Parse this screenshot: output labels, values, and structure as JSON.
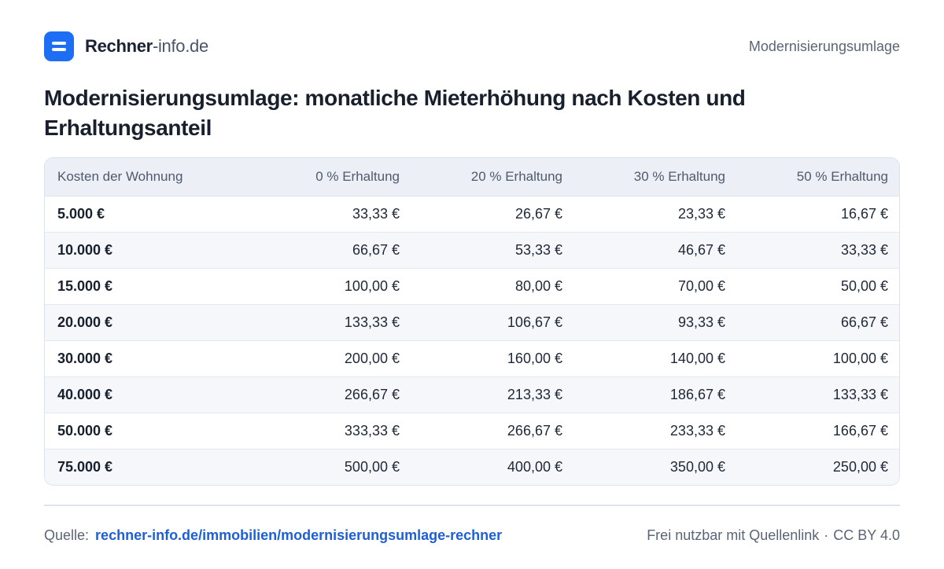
{
  "header": {
    "brand_strong": "Rechner",
    "brand_light": "-info.de",
    "page_tag": "Modernisierungsumlage"
  },
  "title": "Modernisierungsumlage: monatliche Mieterhöhung nach Kosten und Erhaltungsanteil",
  "table": {
    "columns": [
      "Kosten der Wohnung",
      "0 % Erhaltung",
      "20 % Erhaltung",
      "30 % Erhaltung",
      "50 % Erhaltung"
    ],
    "rows": [
      [
        "5.000 €",
        "33,33 €",
        "26,67 €",
        "23,33 €",
        "16,67 €"
      ],
      [
        "10.000 €",
        "66,67 €",
        "53,33 €",
        "46,67 €",
        "33,33 €"
      ],
      [
        "15.000 €",
        "100,00 €",
        "80,00 €",
        "70,00 €",
        "50,00 €"
      ],
      [
        "20.000 €",
        "133,33 €",
        "106,67 €",
        "93,33 €",
        "66,67 €"
      ],
      [
        "30.000 €",
        "200,00 €",
        "160,00 €",
        "140,00 €",
        "100,00 €"
      ],
      [
        "40.000 €",
        "266,67 €",
        "213,33 €",
        "186,67 €",
        "133,33 €"
      ],
      [
        "50.000 €",
        "333,33 €",
        "266,67 €",
        "233,33 €",
        "166,67 €"
      ],
      [
        "75.000 €",
        "500,00 €",
        "400,00 €",
        "350,00 €",
        "250,00 €"
      ]
    ]
  },
  "footer": {
    "source_label": "Quelle:",
    "source_link": "rechner-info.de/immobilien/modernisierungsumlage-rechner",
    "usage": "Frei nutzbar mit Quellenlink",
    "separator": "·",
    "license": "CC BY 4.0"
  },
  "colors": {
    "accent": "#1d6ef5",
    "link": "#1d5fd6",
    "header_row": "#ecf0f6",
    "stripe": "#f5f7fb"
  },
  "icons": {
    "logo": "equals-logo-icon"
  }
}
